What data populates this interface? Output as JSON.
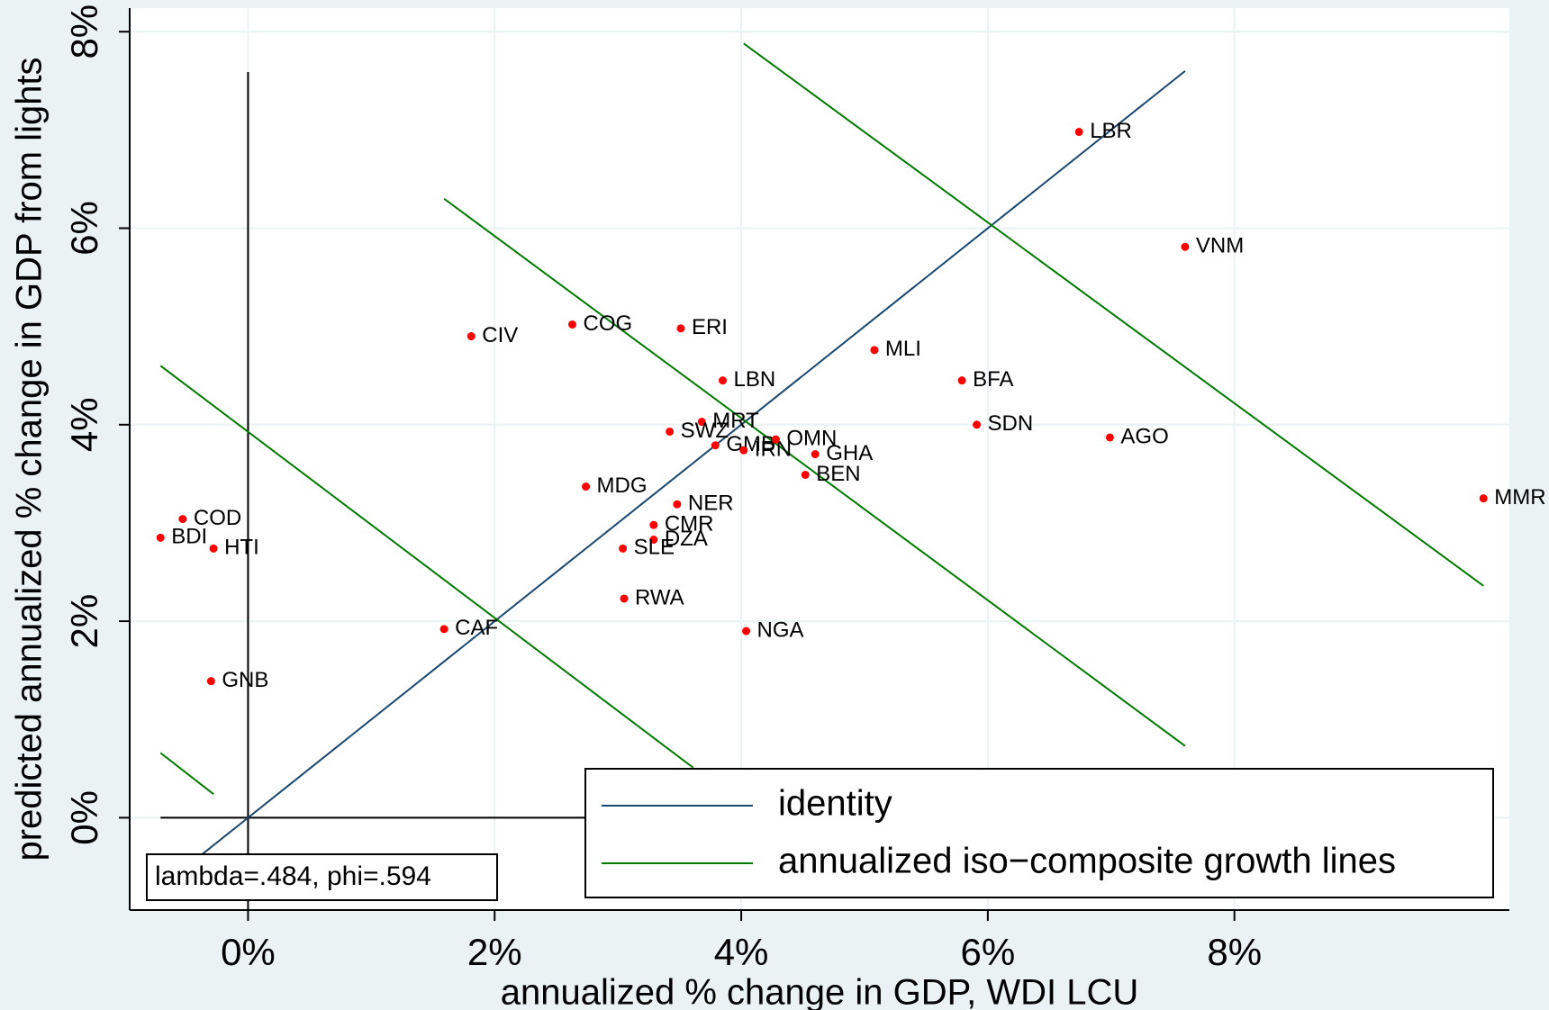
{
  "chart_data": {
    "type": "scatter",
    "x_label": "annualized % change in GDP, WDI LCU",
    "y_label": "predicted annualized % change in GDP from lights",
    "annotation": "lambda=.484, phi=.594",
    "xlim": [
      -0.96,
      10.23
    ],
    "ylim": [
      -0.94,
      8.24
    ],
    "xticks": [
      {
        "value": 0,
        "label": "0%"
      },
      {
        "value": 2,
        "label": "2%"
      },
      {
        "value": 4,
        "label": "4%"
      },
      {
        "value": 6,
        "label": "6%"
      },
      {
        "value": 8,
        "label": "8%"
      }
    ],
    "yticks": [
      {
        "value": 0,
        "label": "0%"
      },
      {
        "value": 2,
        "label": "2%"
      },
      {
        "value": 4,
        "label": "4%"
      },
      {
        "value": 6,
        "label": "6%"
      },
      {
        "value": 8,
        "label": "8%"
      }
    ],
    "grid": true,
    "points": {
      "color": "#ff0000",
      "labels": [
        "LBR",
        "VNM",
        "CIV",
        "COG",
        "ERI",
        "MLI",
        "LBN",
        "BFA",
        "SDN",
        "AGO",
        "MRT",
        "SWZ",
        "GMB",
        "IRN",
        "OMN",
        "GHA",
        "BEN",
        "MDG",
        "NER",
        "CMR",
        "DZA",
        "SLE",
        "RWA",
        "NGA",
        "CAF",
        "COD",
        "BDI",
        "HTI",
        "GNB",
        "MMR"
      ],
      "x": [
        6.74,
        7.6,
        1.81,
        2.63,
        3.51,
        5.08,
        3.85,
        5.79,
        5.91,
        6.99,
        3.68,
        3.42,
        3.79,
        4.02,
        4.28,
        4.6,
        4.52,
        2.74,
        3.48,
        3.29,
        3.29,
        3.04,
        3.05,
        4.04,
        1.59,
        -0.53,
        -0.71,
        -0.28,
        -0.3,
        10.02
      ],
      "y": [
        6.98,
        5.81,
        4.9,
        5.02,
        4.98,
        4.76,
        4.45,
        4.45,
        4.0,
        3.87,
        4.03,
        3.93,
        3.79,
        3.74,
        3.85,
        3.7,
        3.49,
        3.37,
        3.19,
        2.98,
        2.83,
        2.74,
        2.23,
        1.9,
        1.92,
        3.04,
        2.85,
        2.74,
        1.39,
        3.25
      ]
    },
    "series": [
      {
        "name": "identity",
        "color": "#1a476f",
        "x": [
          -0.4,
          7.6
        ],
        "values": [
          -0.4,
          7.6
        ]
      },
      {
        "name": "annualized iso−composite growth lines",
        "color": "#007a00",
        "x": [
          4.02,
          10.02,
          null,
          1.59,
          7.6,
          null,
          -0.71,
          3.61,
          null,
          -0.71,
          -0.28
        ],
        "values": [
          7.88,
          2.36,
          null,
          6.3,
          0.73,
          null,
          4.6,
          0.51,
          null,
          0.66,
          0.24
        ]
      }
    ],
    "zero_lines": {
      "color": "#000000",
      "x": [
        0,
        0,
        null,
        -0.71,
        10.02
      ],
      "values": [
        7.59,
        -0.94,
        null,
        0,
        0
      ]
    },
    "legend": "bottom-right"
  }
}
